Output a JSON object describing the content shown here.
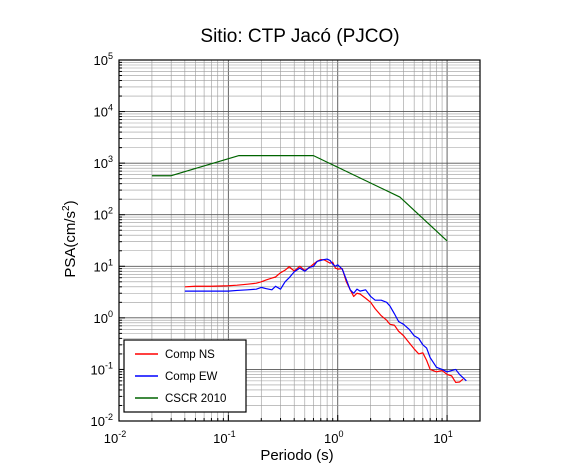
{
  "chart_data": {
    "type": "line",
    "title": "Sitio: CTP Jacó (PJCO)",
    "xlabel": "Periodo (s)",
    "ylabel_main": "PSA(cm/s",
    "ylabel_sup": "2",
    "ylabel_close": ")",
    "xscale": "log",
    "yscale": "log",
    "xlim": [
      0.01,
      20
    ],
    "ylim": [
      0.01,
      100000
    ],
    "x_ticks": [
      {
        "base": "10",
        "exp": "-2"
      },
      {
        "base": "10",
        "exp": "-1"
      },
      {
        "base": "10",
        "exp": "0"
      },
      {
        "base": "10",
        "exp": "1"
      }
    ],
    "y_ticks": [
      {
        "base": "10",
        "exp": "-2"
      },
      {
        "base": "10",
        "exp": "-1"
      },
      {
        "base": "10",
        "exp": "0"
      },
      {
        "base": "10",
        "exp": "1"
      },
      {
        "base": "10",
        "exp": "2"
      },
      {
        "base": "10",
        "exp": "3"
      },
      {
        "base": "10",
        "exp": "4"
      },
      {
        "base": "10",
        "exp": "5"
      }
    ],
    "grid": true,
    "legend_position": "bottom-left",
    "series": [
      {
        "name": "Comp NS",
        "color": "#ff0000",
        "x": [
          0.04,
          0.05,
          0.07,
          0.1,
          0.12,
          0.15,
          0.18,
          0.2,
          0.22,
          0.25,
          0.27,
          0.3,
          0.33,
          0.36,
          0.4,
          0.45,
          0.5,
          0.55,
          0.6,
          0.65,
          0.7,
          0.75,
          0.8,
          0.85,
          0.9,
          0.95,
          1.0,
          1.1,
          1.2,
          1.3,
          1.4,
          1.5,
          1.6,
          1.8,
          2.0,
          2.2,
          2.5,
          2.8,
          3.0,
          3.3,
          3.6,
          4.0,
          4.5,
          5.0,
          5.5,
          6.0,
          6.5,
          7.0,
          8.0,
          9.0,
          10.0,
          11.0,
          12.0,
          13.0,
          14.0
        ],
        "y": [
          4.0,
          4.1,
          4.1,
          4.2,
          4.3,
          4.5,
          4.7,
          5.0,
          5.4,
          5.9,
          6.2,
          7.5,
          8.4,
          9.8,
          8.1,
          10.0,
          8.3,
          9.5,
          11.0,
          12.5,
          13.5,
          13.3,
          12.4,
          11.5,
          12.0,
          9.3,
          8.8,
          9.0,
          5.0,
          3.5,
          2.6,
          3.0,
          2.9,
          2.4,
          2.0,
          1.5,
          1.1,
          0.9,
          0.75,
          0.72,
          0.55,
          0.45,
          0.33,
          0.25,
          0.2,
          0.21,
          0.15,
          0.1,
          0.09,
          0.095,
          0.08,
          0.075,
          0.056,
          0.057,
          0.065
        ]
      },
      {
        "name": "Comp EW",
        "color": "#0000ff",
        "x": [
          0.04,
          0.05,
          0.07,
          0.1,
          0.12,
          0.15,
          0.18,
          0.2,
          0.22,
          0.25,
          0.27,
          0.3,
          0.33,
          0.36,
          0.4,
          0.45,
          0.5,
          0.55,
          0.6,
          0.65,
          0.7,
          0.75,
          0.8,
          0.85,
          0.9,
          0.95,
          1.0,
          1.1,
          1.2,
          1.3,
          1.4,
          1.5,
          1.6,
          1.8,
          2.0,
          2.2,
          2.5,
          2.8,
          3.0,
          3.3,
          3.6,
          4.0,
          4.5,
          5.0,
          5.5,
          6.0,
          6.5,
          7.0,
          8.0,
          9.0,
          10.0,
          11.0,
          12.0,
          13.0,
          15.0
        ],
        "y": [
          3.3,
          3.3,
          3.3,
          3.3,
          3.4,
          3.5,
          3.6,
          3.9,
          3.7,
          3.5,
          4.1,
          3.6,
          5.0,
          6.0,
          7.8,
          9.2,
          8.0,
          9.5,
          10.0,
          12.5,
          13.0,
          13.5,
          13.8,
          13.0,
          11.0,
          10.0,
          10.7,
          8.8,
          5.5,
          3.5,
          3.0,
          3.6,
          3.3,
          3.5,
          2.6,
          2.2,
          2.2,
          2.0,
          1.7,
          1.2,
          0.85,
          0.75,
          0.6,
          0.45,
          0.4,
          0.3,
          0.26,
          0.17,
          0.11,
          0.1,
          0.09,
          0.095,
          0.1,
          0.08,
          0.06
        ]
      },
      {
        "name": "CSCR 2010",
        "color": "#006400",
        "x": [
          0.02,
          0.03,
          0.125,
          0.6,
          3.7,
          10.0
        ],
        "y": [
          570,
          570,
          1400,
          1400,
          220,
          31
        ]
      }
    ]
  }
}
